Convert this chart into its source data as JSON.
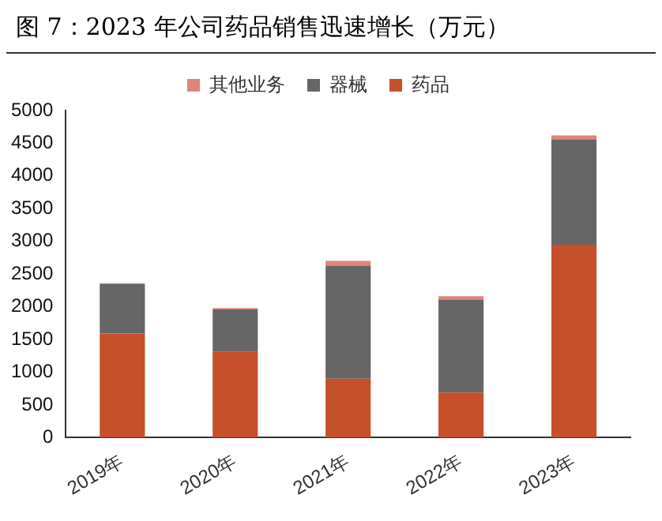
{
  "chart_data": {
    "type": "bar",
    "title": "图 7：2023 年公司药品销售迅速增长（万元）",
    "stacked": true,
    "grid": false,
    "legend": "top",
    "categories": [
      "2019年",
      "2020年",
      "2021年",
      "2022年",
      "2023年"
    ],
    "series": [
      {
        "name": "药品",
        "color": "#c5502a",
        "values": [
          1590,
          1310,
          900,
          690,
          2950
        ]
      },
      {
        "name": "器械",
        "color": "#666666",
        "values": [
          760,
          650,
          1730,
          1420,
          1610
        ]
      },
      {
        "name": "其他业务",
        "color": "#e0857a",
        "values": [
          10,
          20,
          70,
          50,
          60
        ]
      }
    ],
    "ylim": [
      0,
      5000
    ],
    "yticks": [
      0,
      500,
      1000,
      1500,
      2000,
      2500,
      3000,
      3500,
      4000,
      4500,
      5000
    ]
  }
}
